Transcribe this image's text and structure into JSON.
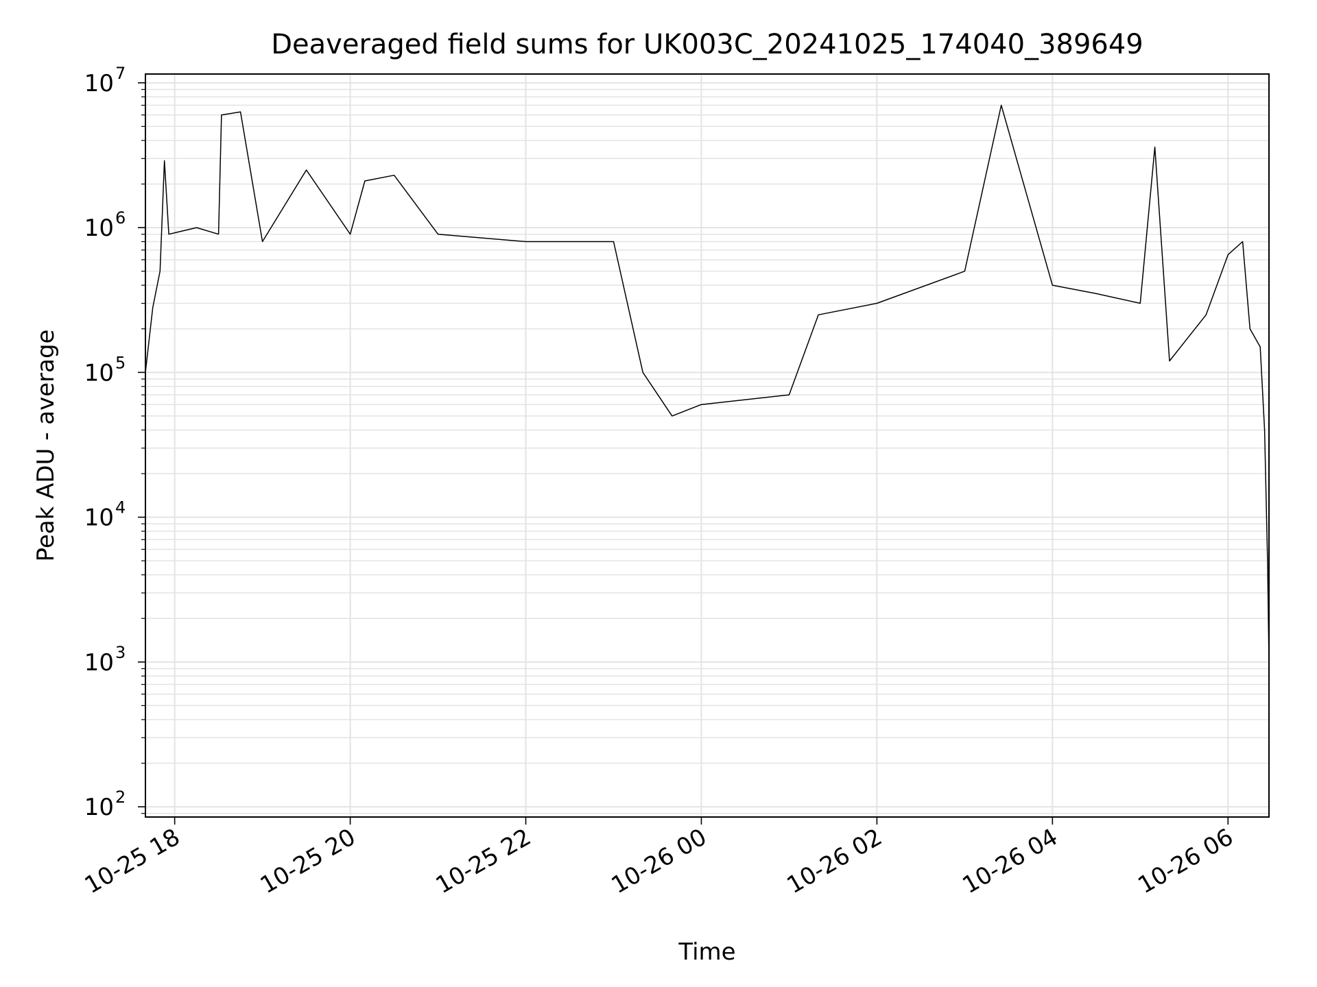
{
  "chart_data": {
    "type": "line",
    "title": "Deaveraged field sums for UK003C_20241025_174040_389649",
    "xlabel": "Time",
    "ylabel": "Peak ADU - average",
    "y_scale": "log",
    "ylim": [
      85,
      11500000
    ],
    "xlim": [
      "2024-10-25 17:40",
      "2024-10-26 06:28"
    ],
    "grid": true,
    "line_color": "#000000",
    "grid_color": "#e3e3e3",
    "x_ticks": [
      {
        "label": "10-25 18",
        "time": "2024-10-25 18:00"
      },
      {
        "label": "10-25 20",
        "time": "2024-10-25 20:00"
      },
      {
        "label": "10-25 22",
        "time": "2024-10-25 22:00"
      },
      {
        "label": "10-26 00",
        "time": "2024-10-26 00:00"
      },
      {
        "label": "10-26 02",
        "time": "2024-10-26 02:00"
      },
      {
        "label": "10-26 04",
        "time": "2024-10-26 04:00"
      },
      {
        "label": "10-26 06",
        "time": "2024-10-26 06:00"
      }
    ],
    "y_ticks": [
      {
        "base": "10",
        "exp": "2",
        "value": 100
      },
      {
        "base": "10",
        "exp": "3",
        "value": 1000
      },
      {
        "base": "10",
        "exp": "4",
        "value": 10000
      },
      {
        "base": "10",
        "exp": "5",
        "value": 100000
      },
      {
        "base": "10",
        "exp": "6",
        "value": 1000000
      },
      {
        "base": "10",
        "exp": "7",
        "value": 10000000
      }
    ],
    "series": [
      {
        "points": [
          [
            "2024-10-25 17:40",
            100000
          ],
          [
            "2024-10-25 17:45",
            280000
          ],
          [
            "2024-10-25 17:50",
            500000
          ],
          [
            "2024-10-25 17:53",
            2900000
          ],
          [
            "2024-10-25 17:56",
            900000
          ],
          [
            "2024-10-25 18:15",
            1000000
          ],
          [
            "2024-10-25 18:30",
            900000
          ],
          [
            "2024-10-25 18:32",
            6000000
          ],
          [
            "2024-10-25 18:45",
            6300000
          ],
          [
            "2024-10-25 19:00",
            800000
          ],
          [
            "2024-10-25 19:30",
            2500000
          ],
          [
            "2024-10-25 20:00",
            900000
          ],
          [
            "2024-10-25 20:10",
            2100000
          ],
          [
            "2024-10-25 20:30",
            2300000
          ],
          [
            "2024-10-25 21:00",
            900000
          ],
          [
            "2024-10-25 22:00",
            800000
          ],
          [
            "2024-10-25 23:00",
            800000
          ],
          [
            "2024-10-25 23:20",
            100000
          ],
          [
            "2024-10-25 23:40",
            50000
          ],
          [
            "2024-10-26 00:00",
            60000
          ],
          [
            "2024-10-26 01:00",
            70000
          ],
          [
            "2024-10-26 01:20",
            250000
          ],
          [
            "2024-10-26 02:00",
            300000
          ],
          [
            "2024-10-26 03:00",
            500000
          ],
          [
            "2024-10-26 03:25",
            7000000
          ],
          [
            "2024-10-26 04:00",
            400000
          ],
          [
            "2024-10-26 04:30",
            350000
          ],
          [
            "2024-10-26 05:00",
            300000
          ],
          [
            "2024-10-26 05:10",
            3600000
          ],
          [
            "2024-10-26 05:20",
            120000
          ],
          [
            "2024-10-26 05:45",
            250000
          ],
          [
            "2024-10-26 06:00",
            650000
          ],
          [
            "2024-10-26 06:10",
            800000
          ],
          [
            "2024-10-26 06:15",
            200000
          ],
          [
            "2024-10-26 06:22",
            150000
          ],
          [
            "2024-10-26 06:25",
            40000
          ],
          [
            "2024-10-26 06:27",
            5000
          ],
          [
            "2024-10-26 06:28",
            1000
          ]
        ]
      }
    ]
  }
}
